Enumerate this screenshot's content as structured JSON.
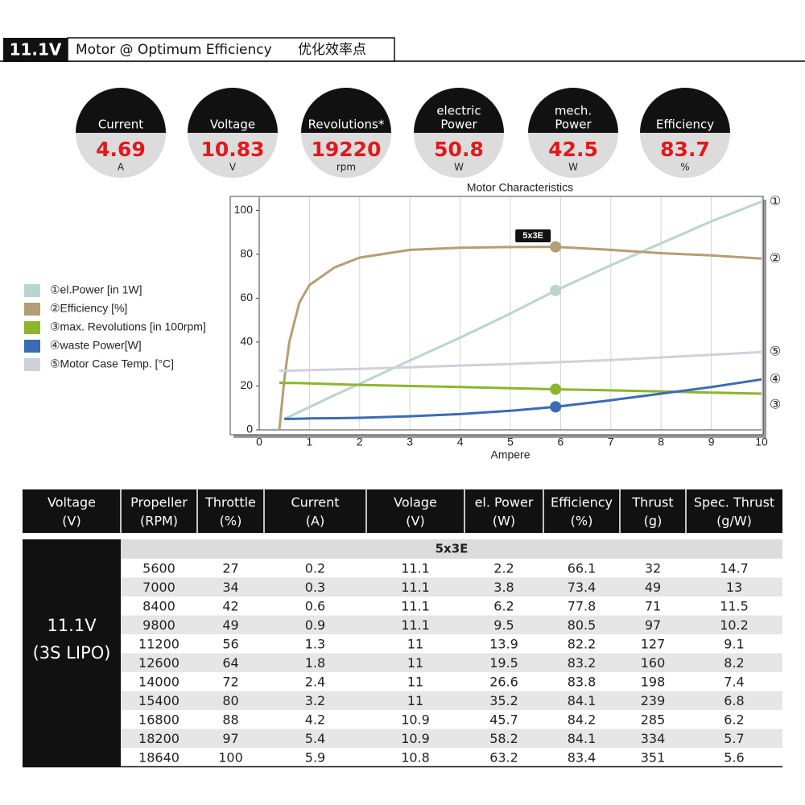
{
  "header": {
    "badge": "11.1V",
    "title": "Motor @ Optimum Efficiency",
    "subtitle_cn": "优化效率点"
  },
  "stats": [
    {
      "label": [
        "Current"
      ],
      "value": 4.69,
      "unit": "A"
    },
    {
      "label": [
        "Voltage"
      ],
      "value": 10.83,
      "unit": "V"
    },
    {
      "label": [
        "Revolutions*"
      ],
      "value": 19220,
      "unit": "rpm"
    },
    {
      "label": [
        "electric",
        "Power"
      ],
      "value": 50.8,
      "unit": "W"
    },
    {
      "label": [
        "mech.",
        "Power"
      ],
      "value": 42.5,
      "unit": "W"
    },
    {
      "label": [
        "Efficiency"
      ],
      "value": 83.7,
      "unit": "%"
    }
  ],
  "chart_data": {
    "type": "line",
    "title": "Motor Characteristics",
    "x_label": "Ampere",
    "x": [
      0.4,
      0.5,
      0.6,
      0.8,
      1,
      1.5,
      2,
      3,
      4,
      5,
      5.9,
      7,
      8,
      9,
      10
    ],
    "xlim": [
      0,
      10
    ],
    "xticks": [
      0,
      1,
      2,
      3,
      4,
      5,
      6,
      7,
      8,
      9,
      10
    ],
    "ylim": [
      0,
      106
    ],
    "yticks": [
      0,
      20,
      40,
      60,
      80,
      100
    ],
    "grid": "x",
    "annotation": {
      "text": "5x3E",
      "x": 5.9
    },
    "series": [
      {
        "name": "①el.Power [in 1W]",
        "end_label": "①",
        "color": "#b9d5ce",
        "marker": true,
        "values": [
          null,
          5,
          6,
          8.2,
          10.4,
          15.8,
          21,
          31.6,
          42,
          53,
          63.5,
          75,
          85,
          95,
          104
        ]
      },
      {
        "name": "②Efficiency [%]",
        "end_label": "②",
        "color": "#b49f74",
        "marker": true,
        "values": [
          0,
          23,
          40,
          58,
          66,
          74,
          78.5,
          82,
          83,
          83.3,
          83.4,
          82,
          80.5,
          79.5,
          78
        ]
      },
      {
        "name": "③max. Revolutions [in 100rpm]",
        "end_label": "③",
        "color": "#8db52d",
        "marker": true,
        "values": [
          21.5,
          21.4,
          21.4,
          21.3,
          21.2,
          20.8,
          20.5,
          20,
          19.5,
          19,
          18.5,
          18,
          17.5,
          17,
          16.5
        ]
      },
      {
        "name": "④waste Power[W]",
        "end_label": "④",
        "color": "#3b6bb5",
        "marker": true,
        "values": [
          null,
          5,
          5,
          5.1,
          5.2,
          5.3,
          5.5,
          6.2,
          7.2,
          8.7,
          10.5,
          13.5,
          16.5,
          19.5,
          23
        ]
      },
      {
        "name": "⑤Motor Case Temp. [°C]",
        "end_label": "⑤",
        "color": "#cfd0dc",
        "marker": false,
        "values": [
          27,
          27,
          27,
          27.1,
          27.2,
          27.5,
          27.8,
          28.5,
          29.3,
          30,
          30.8,
          31.8,
          33,
          34.2,
          35.5
        ]
      }
    ]
  },
  "table": {
    "header": [
      [
        "Voltage",
        "(V)"
      ],
      [
        "Propeller",
        "(RPM)"
      ],
      [
        "Throttle",
        "(%)"
      ],
      [
        "Current",
        "(A)"
      ],
      [
        "Volage",
        "(V)"
      ],
      [
        "el. Power",
        "(W)"
      ],
      [
        "Efficiency",
        "(%)"
      ],
      [
        "Thrust",
        "(g)"
      ],
      [
        "Spec. Thrust",
        "(g/W)"
      ]
    ],
    "group": "5x3E",
    "row_label": [
      "11.1V",
      "(3S LIPO)"
    ],
    "rows": [
      [
        5600,
        27,
        0.2,
        11.1,
        2.2,
        66.1,
        32,
        14.7
      ],
      [
        7000,
        34,
        0.3,
        11.1,
        3.8,
        73.4,
        49,
        13
      ],
      [
        8400,
        42,
        0.6,
        11.1,
        6.2,
        77.8,
        71,
        11.5
      ],
      [
        9800,
        49,
        0.9,
        11.1,
        9.5,
        80.5,
        97,
        10.2
      ],
      [
        11200,
        56,
        1.3,
        11,
        13.9,
        82.2,
        127,
        9.1
      ],
      [
        12600,
        64,
        1.8,
        11,
        19.5,
        83.2,
        160,
        8.2
      ],
      [
        14000,
        72,
        2.4,
        11,
        26.6,
        83.8,
        198,
        7.4
      ],
      [
        15400,
        80,
        3.2,
        11,
        35.2,
        84.1,
        239,
        6.8
      ],
      [
        16800,
        88,
        4.2,
        10.9,
        45.7,
        84.2,
        285,
        6.2
      ],
      [
        18200,
        97,
        5.4,
        10.9,
        58.2,
        84.1,
        334,
        5.7
      ],
      [
        18640,
        100,
        5.9,
        10.8,
        63.2,
        83.4,
        351,
        5.6
      ]
    ]
  }
}
